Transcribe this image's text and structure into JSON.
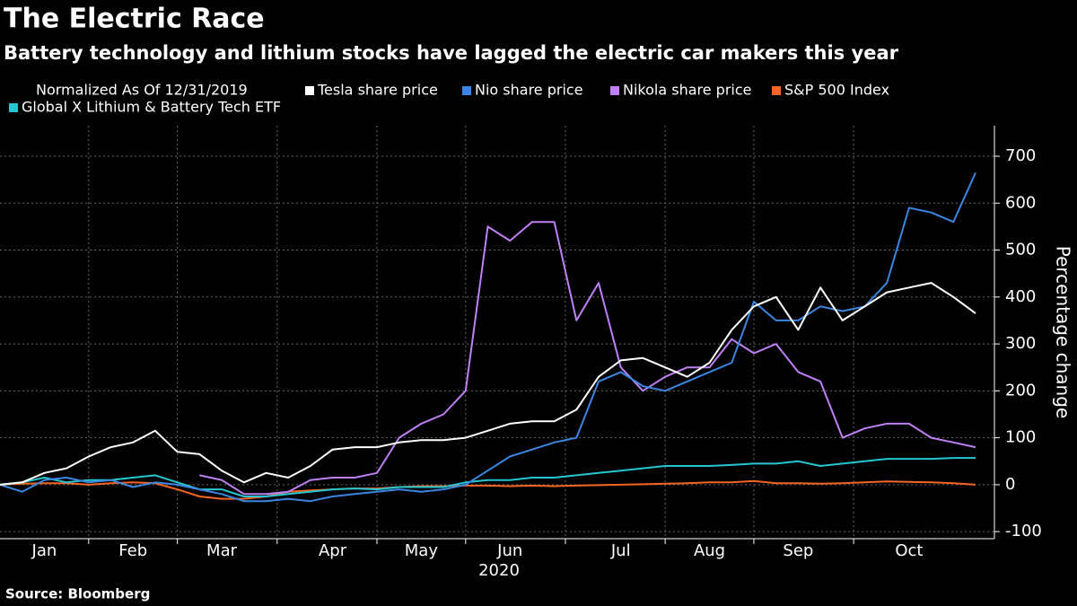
{
  "chart_data": {
    "type": "line",
    "title": "The Electric Race",
    "subtitle": "Battery technology and lithium stocks have lagged the electric car makers this year",
    "legend_title": "Normalized As Of 12/31/2019",
    "xlabel": "2020",
    "ylabel": "Percentage change",
    "source": "Source: Bloomberg",
    "categories": [
      null,
      null,
      "Jan",
      null,
      null,
      null,
      "Feb",
      null,
      null,
      null,
      "Mar",
      null,
      null,
      null,
      null,
      "Apr",
      null,
      null,
      null,
      "May",
      null,
      null,
      null,
      "Jun",
      null,
      null,
      null,
      null,
      "Jul",
      null,
      null,
      null,
      "Aug",
      null,
      null,
      null,
      "Sep",
      null,
      null,
      null,
      null,
      "Oct",
      null,
      null,
      null
    ],
    "ylim": [
      -115,
      765
    ],
    "yticks": [
      -100,
      0,
      100,
      200,
      300,
      400,
      500,
      600,
      700
    ],
    "grid": true,
    "series": [
      {
        "name": "Tesla share price",
        "color": "#ffffff",
        "values": [
          0,
          5,
          25,
          35,
          60,
          80,
          90,
          115,
          70,
          65,
          30,
          5,
          25,
          15,
          40,
          75,
          80,
          80,
          90,
          95,
          95,
          100,
          115,
          130,
          135,
          135,
          160,
          230,
          265,
          270,
          250,
          230,
          260,
          330,
          380,
          400,
          330,
          420,
          350,
          380,
          410,
          420,
          430,
          400,
          365
        ]
      },
      {
        "name": "Nio share price",
        "color": "#3b86e0",
        "values": [
          0,
          -15,
          10,
          15,
          5,
          10,
          -5,
          5,
          0,
          -10,
          -20,
          -35,
          -35,
          -30,
          -35,
          -25,
          -20,
          -15,
          -10,
          -15,
          -10,
          0,
          30,
          60,
          75,
          90,
          100,
          220,
          240,
          210,
          200,
          220,
          240,
          260,
          390,
          350,
          350,
          380,
          370,
          380,
          430,
          590,
          580,
          560,
          665
        ]
      },
      {
        "name": "Nikola share price",
        "color": "#bf80f5",
        "values": [
          null,
          null,
          null,
          null,
          null,
          null,
          null,
          null,
          null,
          20,
          10,
          -20,
          -20,
          -15,
          10,
          15,
          15,
          25,
          100,
          130,
          150,
          200,
          550,
          520,
          560,
          560,
          350,
          430,
          250,
          200,
          230,
          250,
          250,
          310,
          280,
          300,
          240,
          220,
          100,
          120,
          130,
          130,
          100,
          90,
          80
        ]
      },
      {
        "name": "S&P 500 Index",
        "color": "#f26522",
        "values": [
          0,
          2,
          3,
          3,
          0,
          3,
          5,
          3,
          -10,
          -25,
          -30,
          -30,
          -25,
          -15,
          -12,
          -10,
          -8,
          -8,
          -5,
          -3,
          -3,
          -2,
          -2,
          -3,
          -2,
          -3,
          -2,
          -1,
          0,
          1,
          2,
          3,
          5,
          5,
          8,
          3,
          3,
          2,
          3,
          5,
          7,
          6,
          5,
          3,
          0
        ]
      },
      {
        "name": "Global X Lithium & Battery Tech ETF",
        "color": "#26c6d0",
        "values": [
          0,
          5,
          15,
          5,
          10,
          10,
          15,
          20,
          5,
          -10,
          -10,
          -25,
          -25,
          -20,
          -15,
          -10,
          -8,
          -10,
          -5,
          -5,
          -5,
          5,
          10,
          10,
          15,
          15,
          20,
          25,
          30,
          35,
          40,
          40,
          40,
          42,
          45,
          45,
          50,
          40,
          45,
          50,
          55,
          55,
          55,
          57,
          57
        ]
      }
    ]
  }
}
